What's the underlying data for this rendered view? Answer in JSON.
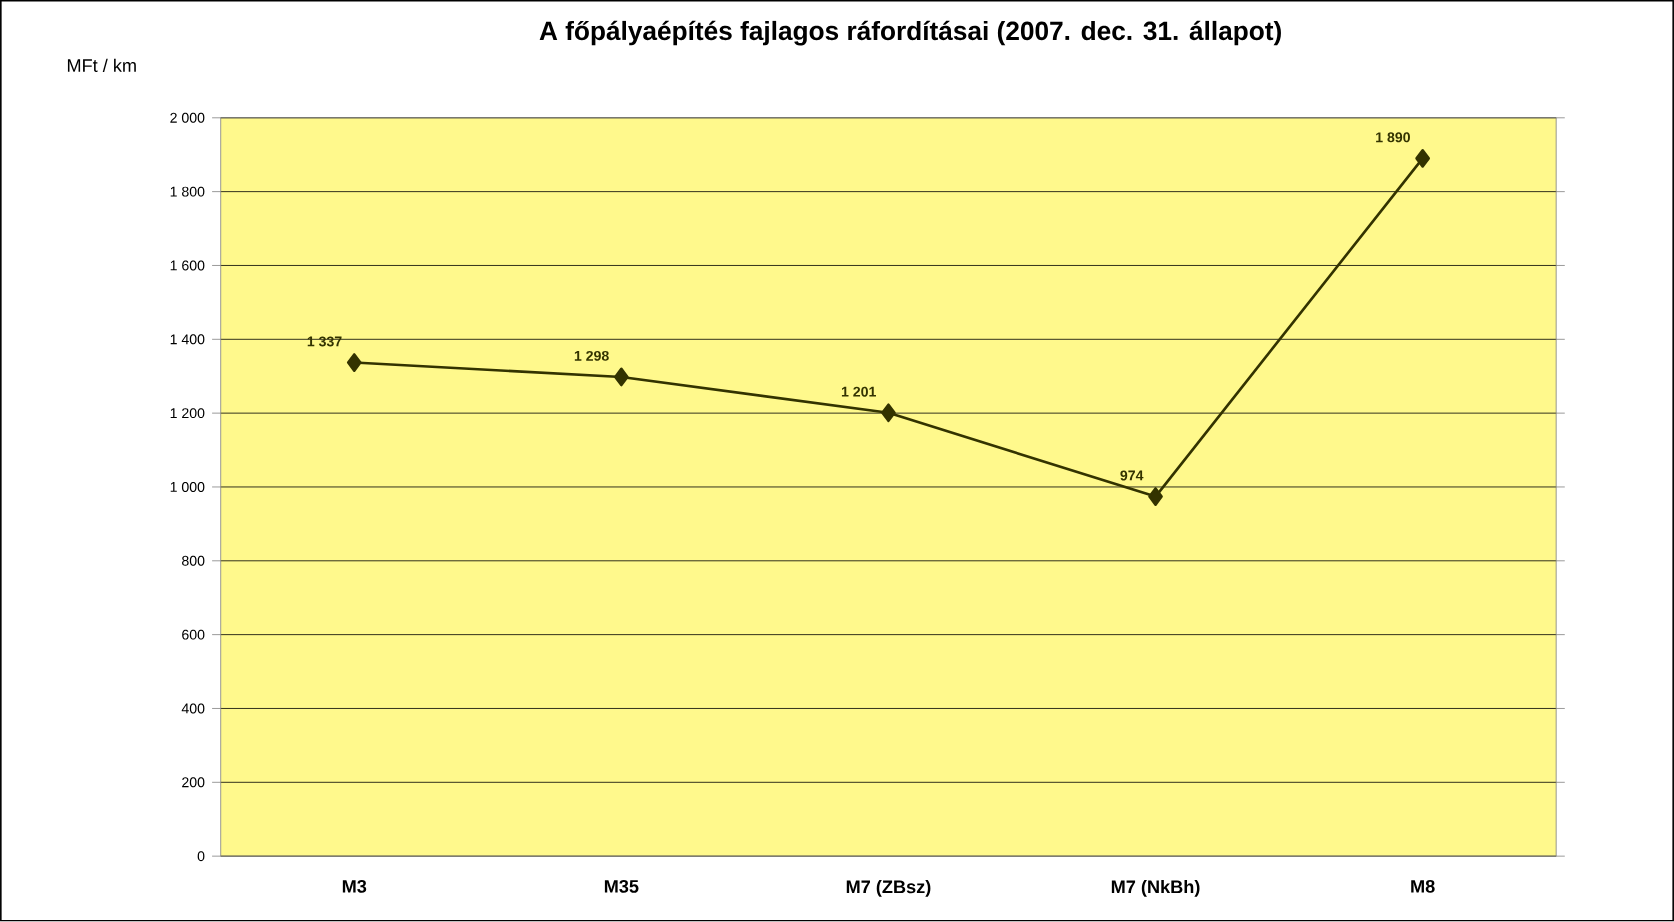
{
  "chart_data": {
    "type": "line",
    "title": "A főpályaépítés fajlagos ráfordításai  (2007. dec. 31. állapot)",
    "ylabel": "MFt / km",
    "categories": [
      "M3",
      "M35",
      "M7 (ZBsz)",
      "M7 (NkBh)",
      "M8"
    ],
    "series": [
      {
        "color": "#333300",
        "values": [
          1337,
          1298,
          1201,
          974,
          1890
        ],
        "value_labels": [
          "1 337",
          "1 298",
          "1 201",
          "974",
          "1 890"
        ]
      }
    ],
    "ylim": [
      0,
      2000
    ],
    "yticks": [
      {
        "value": 0,
        "label": "0"
      },
      {
        "value": 200,
        "label": "200"
      },
      {
        "value": 400,
        "label": "400"
      },
      {
        "value": 600,
        "label": "600"
      },
      {
        "value": 800,
        "label": "800"
      },
      {
        "value": 1000,
        "label": "1 000"
      },
      {
        "value": 1200,
        "label": "1 200"
      },
      {
        "value": 1400,
        "label": "1 400"
      },
      {
        "value": 1600,
        "label": "1 600"
      },
      {
        "value": 1800,
        "label": "1 800"
      },
      {
        "value": 2000,
        "label": "2 000"
      }
    ],
    "grid": "y",
    "marker": "diamond",
    "line_style": "solid"
  }
}
